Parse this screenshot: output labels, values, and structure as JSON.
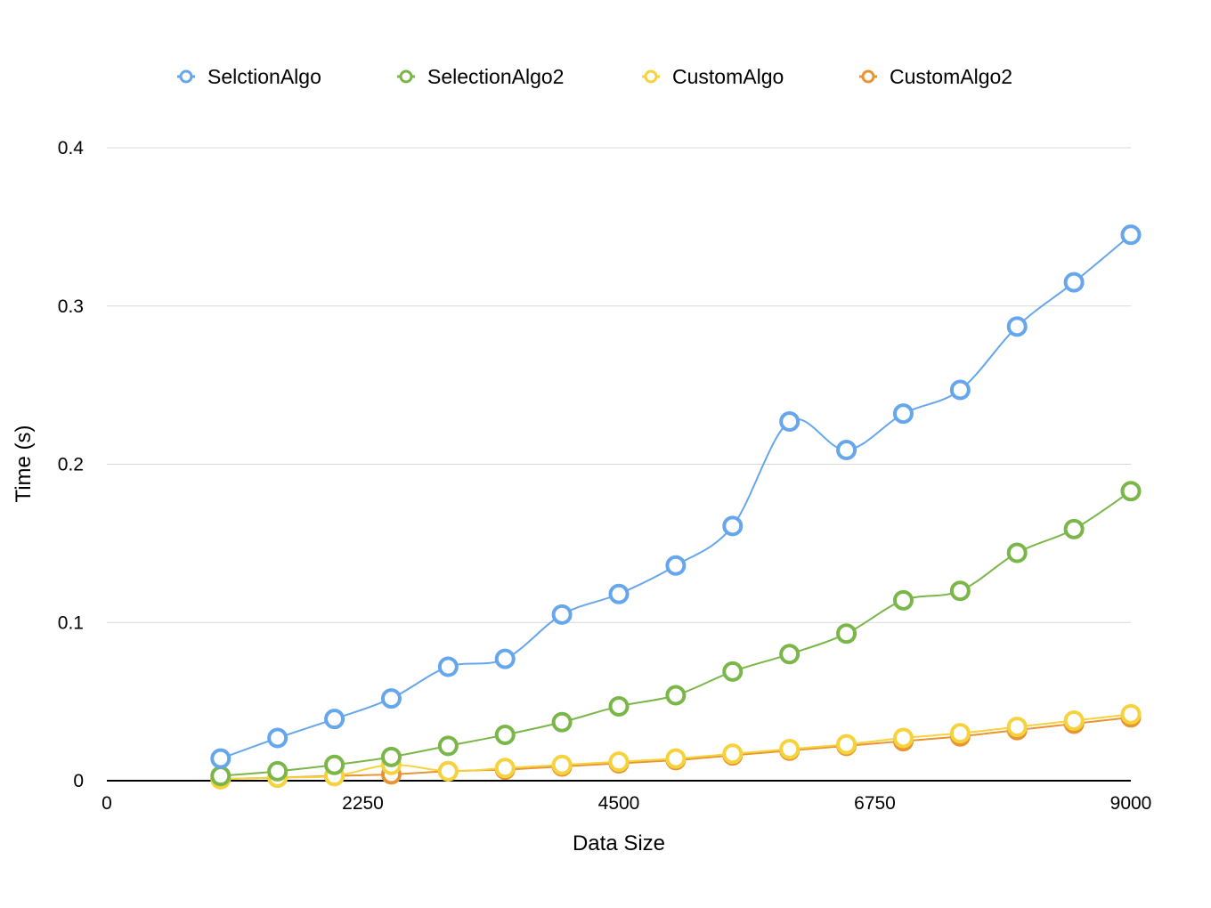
{
  "chart_data": {
    "type": "line",
    "title": "",
    "xlabel": "Data Size",
    "ylabel": "Time (s)",
    "xlim": [
      0,
      9000
    ],
    "ylim": [
      0,
      0.4
    ],
    "x_ticks": [
      0,
      2250,
      4500,
      6750,
      9000
    ],
    "y_ticks": [
      0,
      0.1,
      0.2,
      0.3,
      0.4
    ],
    "x_tick_labels": [
      "0",
      "2250",
      "4500",
      "6750",
      "9000"
    ],
    "y_tick_labels": [
      "0",
      "0.1",
      "0.2",
      "0.3",
      "0.4"
    ],
    "grid": "horizontal",
    "legend_position": "top",
    "x": [
      1000,
      1500,
      2000,
      2500,
      3000,
      3500,
      4000,
      4500,
      5000,
      5500,
      6000,
      6500,
      7000,
      7500,
      8000,
      8500,
      9000
    ],
    "series": [
      {
        "name": "SelctionAlgo",
        "color": "#66a6ec",
        "values": [
          0.014,
          0.027,
          0.039,
          0.052,
          0.072,
          0.077,
          0.105,
          0.118,
          0.136,
          0.161,
          0.227,
          0.209,
          0.232,
          0.247,
          0.287,
          0.315,
          0.345
        ]
      },
      {
        "name": "SelectionAlgo2",
        "color": "#7ab648",
        "values": [
          0.003,
          0.006,
          0.01,
          0.015,
          0.022,
          0.029,
          0.037,
          0.047,
          0.054,
          0.069,
          0.08,
          0.093,
          0.114,
          0.12,
          0.144,
          0.159,
          0.183
        ]
      },
      {
        "name": "CustomAlgo",
        "color": "#f6d33c",
        "values": [
          0.001,
          0.002,
          0.003,
          0.01,
          0.006,
          0.008,
          0.01,
          0.012,
          0.014,
          0.017,
          0.02,
          0.023,
          0.027,
          0.03,
          0.034,
          0.038,
          0.042
        ]
      },
      {
        "name": "CustomAlgo2",
        "color": "#e89434",
        "values": [
          0.001,
          0.002,
          0.003,
          0.004,
          0.006,
          0.007,
          0.009,
          0.011,
          0.013,
          0.016,
          0.019,
          0.022,
          0.025,
          0.028,
          0.032,
          0.036,
          0.04
        ]
      }
    ]
  }
}
